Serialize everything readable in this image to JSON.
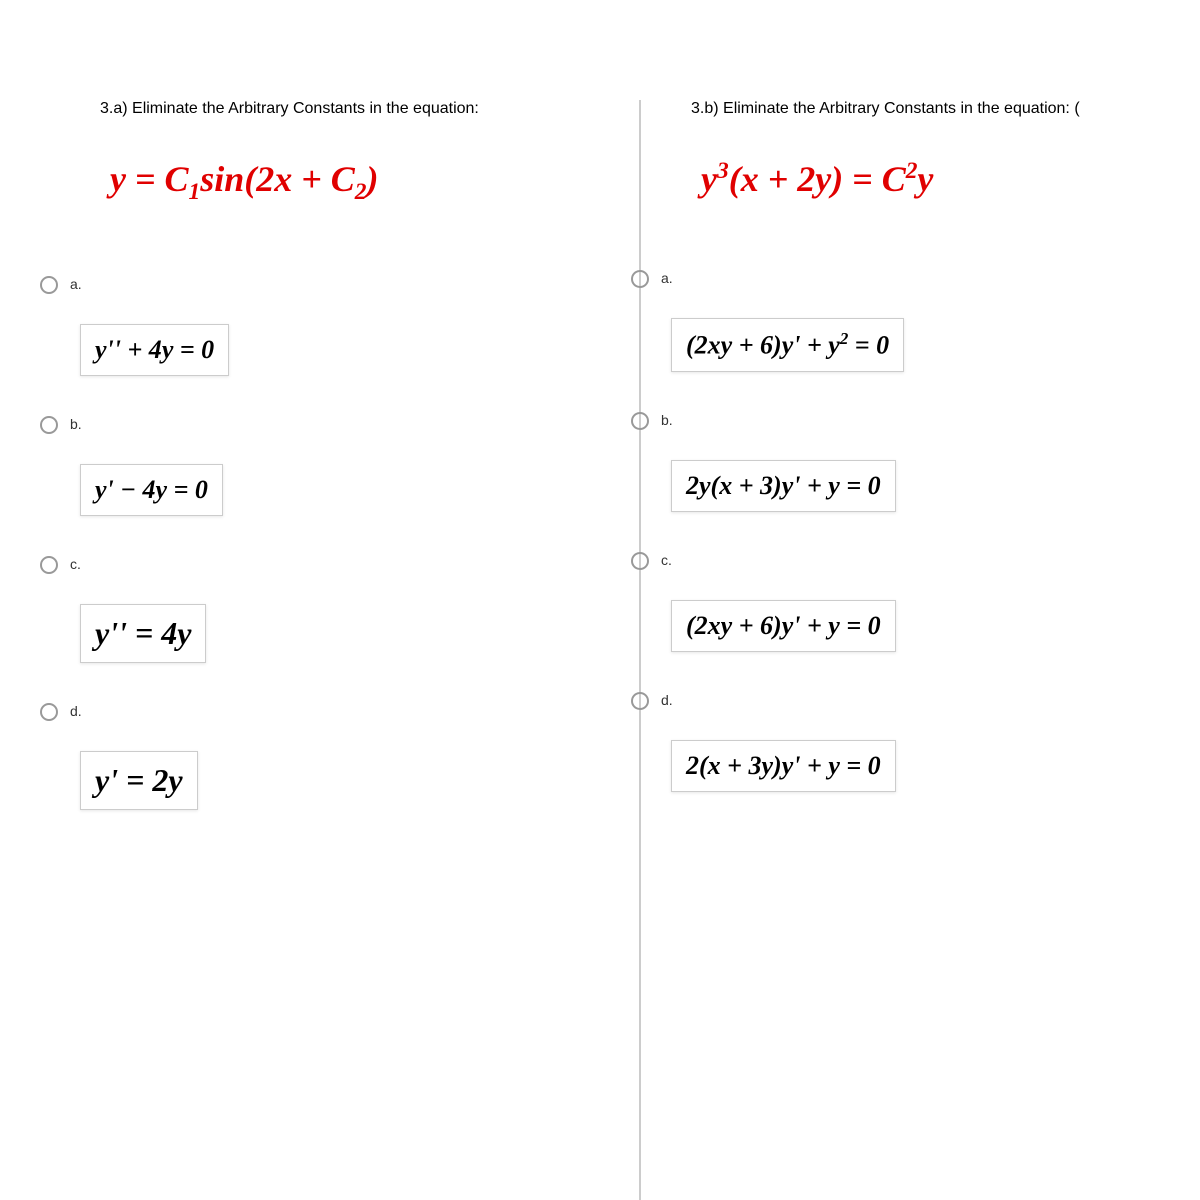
{
  "colors": {
    "equation_main": "#e00000",
    "equation_option": "#000000",
    "border": "#cccccc",
    "radio_border": "#999999",
    "text": "#000000"
  },
  "typography": {
    "prompt_fontsize": 16,
    "main_equation_fontsize": 36,
    "option_equation_fontsize": 26,
    "option_label_fontsize": 14,
    "math_fontfamily": "Cambria Math, Times New Roman, serif"
  },
  "left": {
    "prompt": "3.a) Eliminate the Arbitrary Constants in the equation:",
    "equation_html": "<i>y</i> = <i>C</i><sub>1</sub>sin(2<i>x</i> + <i>C</i><sub>2</sub>)",
    "options": [
      {
        "label": "a.",
        "html": "<i>y</i>'' + 4<i>y</i> = 0"
      },
      {
        "label": "b.",
        "html": "<i>y</i>' − 4<i>y</i> = 0"
      },
      {
        "label": "c.",
        "html": "<i>y</i>'' = 4<i>y</i>",
        "large": true
      },
      {
        "label": "d.",
        "html": "<i>y</i>' = 2<i>y</i>",
        "large": true
      }
    ]
  },
  "right": {
    "prompt": "3.b) Eliminate the Arbitrary Constants in the equation: (",
    "equation_html": "<i>y</i><sup>3</sup>(<i>x</i> + 2<i>y</i>) = <i>C</i><sup>2</sup><i>y</i>",
    "options": [
      {
        "label": "a.",
        "html": "(2<i>xy</i> + 6)<i>y</i>' + <i>y</i><sup>2</sup> = 0"
      },
      {
        "label": "b.",
        "html": "2<i>y</i>(<i>x</i> + 3)<i>y</i>' + <i>y</i> = 0"
      },
      {
        "label": "c.",
        "html": "(2<i>xy</i> + 6)<i>y</i>' + <i>y</i> = 0"
      },
      {
        "label": "d.",
        "html": "2(<i>x</i> + 3<i>y</i>)<i>y</i>' + <i>y</i> = 0"
      }
    ]
  }
}
